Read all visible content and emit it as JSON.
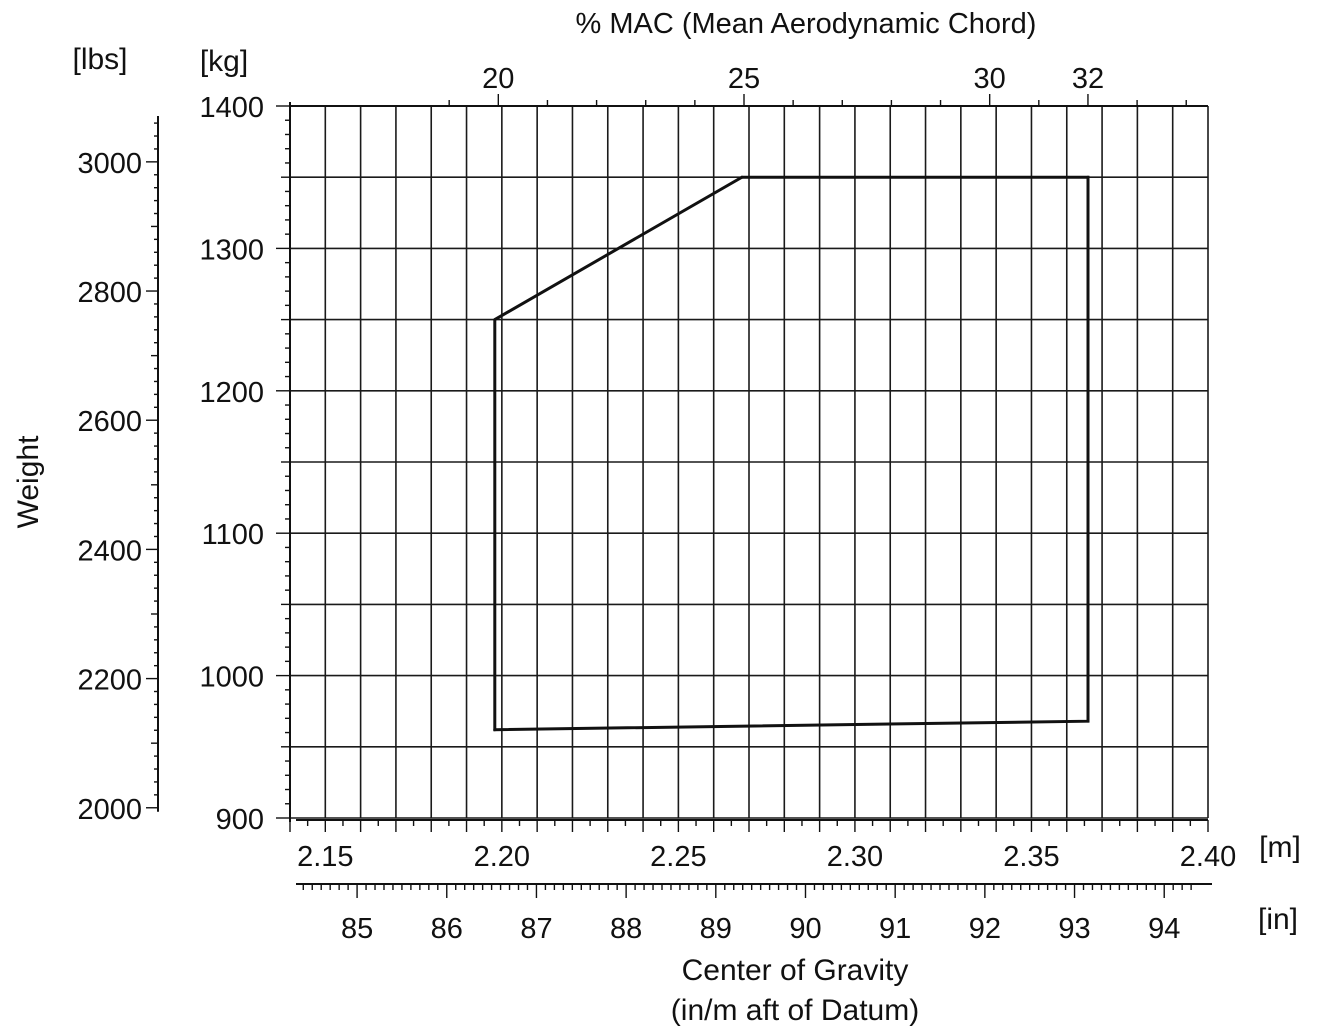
{
  "chart_data": {
    "type": "line",
    "title": "% MAC (Mean Aerodynamic Chord)",
    "xlabel": "Center of Gravity",
    "xlabel_sub": "(in/m aft of Datum)",
    "ylabel": "Weight",
    "x_unit_m": "[m]",
    "x_unit_in": "[in]",
    "y_unit_kg": "[kg]",
    "y_unit_lbs": "[lbs]",
    "xlim_m": [
      2.14,
      2.4
    ],
    "ylim_kg": [
      900,
      1400
    ],
    "grid": true,
    "x_ticks_m": [
      "2.15",
      "2.20",
      "2.25",
      "2.30",
      "2.35",
      "2.40"
    ],
    "x_ticks_in": [
      "85",
      "86",
      "87",
      "88",
      "89",
      "90",
      "91",
      "92",
      "93",
      "94"
    ],
    "mac_ticks": [
      "20",
      "25",
      "30",
      "32"
    ],
    "y_ticks_kg": [
      "900",
      "1000",
      "1100",
      "1200",
      "1300",
      "1400"
    ],
    "y_ticks_lbs": [
      "2000",
      "2200",
      "2400",
      "2600",
      "2800",
      "3000"
    ],
    "series": [
      {
        "points": [
          {
            "x": 2.198,
            "y": 1250
          },
          {
            "x": 2.268,
            "y": 1350
          },
          {
            "x": 2.366,
            "y": 1350
          },
          {
            "x": 2.366,
            "y": 968
          },
          {
            "x": 2.198,
            "y": 962
          },
          {
            "x": 2.198,
            "y": 1250
          }
        ]
      }
    ]
  }
}
